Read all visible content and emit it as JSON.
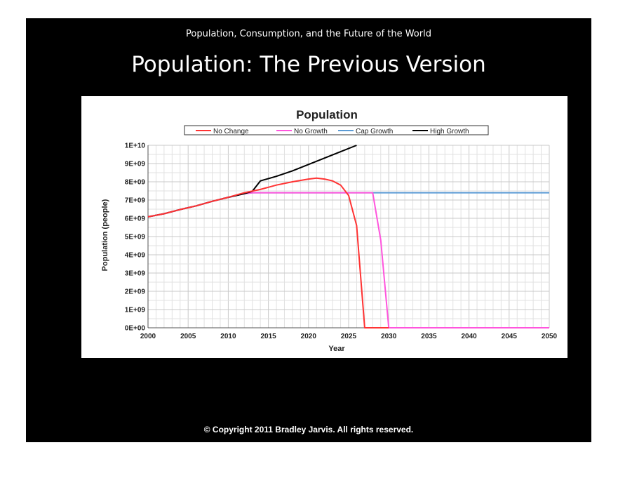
{
  "slide": {
    "supertitle": "Population, Consumption, and the Future of the World",
    "title": "Population:  The Previous Version",
    "copyright": "© Copyright 2011 Bradley Jarvis.  All rights reserved."
  },
  "chart_data": {
    "type": "line",
    "title": "Population",
    "xlabel": "Year",
    "ylabel": "Population (people)",
    "xlim": [
      2000,
      2050
    ],
    "ylim": [
      0,
      10000000000
    ],
    "xticks": [
      2000,
      2005,
      2010,
      2015,
      2020,
      2025,
      2030,
      2035,
      2040,
      2045,
      2050
    ],
    "xtick_labels": [
      "2000",
      "2005",
      "2010",
      "2015",
      "2020",
      "2025",
      "2030",
      "2035",
      "2040",
      "2045",
      "2050"
    ],
    "yticks": [
      0,
      1000000000,
      2000000000,
      3000000000,
      4000000000,
      5000000000,
      6000000000,
      7000000000,
      8000000000,
      9000000000,
      10000000000
    ],
    "ytick_labels": [
      "0E+00",
      "1E+09",
      "2E+09",
      "3E+09",
      "4E+09",
      "5E+09",
      "6E+09",
      "7E+09",
      "8E+09",
      "9E+09",
      "1E+10"
    ],
    "grid": true,
    "legend_position": "top",
    "series": [
      {
        "name": "No Change",
        "color": "#ff3333",
        "x": [
          2000,
          2002,
          2004,
          2006,
          2008,
          2010,
          2012,
          2014,
          2016,
          2018,
          2020,
          2021,
          2022,
          2023,
          2024,
          2025,
          2026,
          2027,
          2030
        ],
        "y": [
          6080000000,
          6250000000,
          6480000000,
          6680000000,
          6930000000,
          7150000000,
          7400000000,
          7580000000,
          7820000000,
          8000000000,
          8150000000,
          8200000000,
          8150000000,
          8050000000,
          7820000000,
          7250000000,
          5600000000,
          0,
          0
        ]
      },
      {
        "name": "No Growth",
        "color": "#ff55dd",
        "x": [
          2000,
          2002,
          2004,
          2006,
          2008,
          2010,
          2012,
          2013,
          2027,
          2028,
          2029,
          2030,
          2050
        ],
        "y": [
          6080000000,
          6250000000,
          6480000000,
          6680000000,
          6930000000,
          7150000000,
          7350000000,
          7400000000,
          7400000000,
          7400000000,
          4800000000,
          0,
          0
        ]
      },
      {
        "name": "Cap Growth",
        "color": "#5b9bd5",
        "x": [
          2000,
          2002,
          2004,
          2006,
          2008,
          2010,
          2012,
          2013,
          2050
        ],
        "y": [
          6080000000,
          6250000000,
          6480000000,
          6680000000,
          6930000000,
          7150000000,
          7350000000,
          7400000000,
          7400000000
        ]
      },
      {
        "name": "High Growth",
        "color": "#000000",
        "x": [
          2000,
          2002,
          2004,
          2006,
          2008,
          2010,
          2012,
          2013,
          2014,
          2016,
          2018,
          2020,
          2022,
          2024,
          2026
        ],
        "y": [
          6080000000,
          6250000000,
          6480000000,
          6680000000,
          6930000000,
          7150000000,
          7350000000,
          7480000000,
          8050000000,
          8300000000,
          8600000000,
          8950000000,
          9300000000,
          9650000000,
          10000000000
        ]
      }
    ]
  }
}
